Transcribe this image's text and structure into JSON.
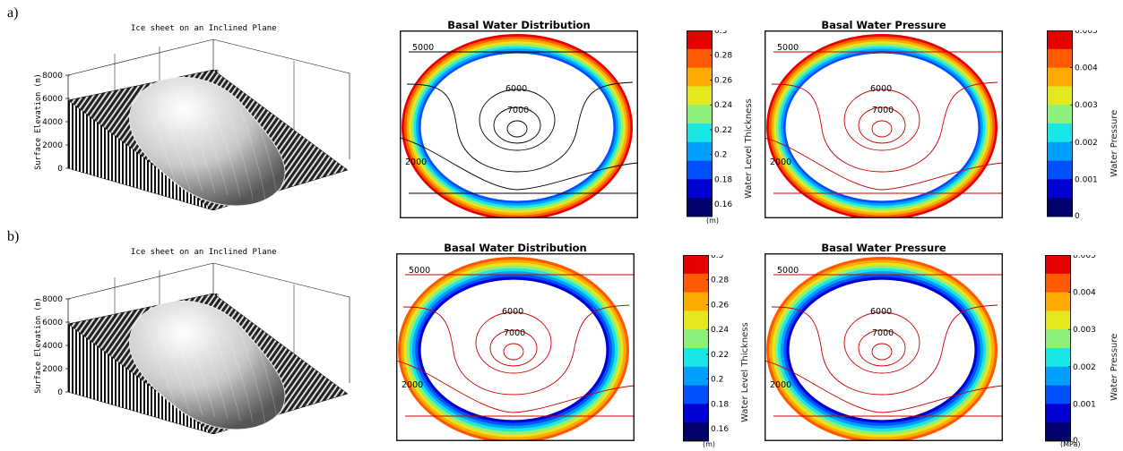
{
  "rows": [
    {
      "label": "a)",
      "surface": {
        "title": "Ice sheet on an Inclined Plane",
        "ylabel": "Surface Elevation (m)",
        "yticks": [
          "8000",
          "6000",
          "4000",
          "2000",
          "0"
        ]
      },
      "water": {
        "title": "Basal Water Distribution",
        "contour_labels": [
          "5000",
          "6000",
          "7000",
          "2000"
        ],
        "contour_color": "#000000",
        "colorbar": {
          "label": "Water Level Thickness",
          "unit": "(m)",
          "ticks": [
            "0.3",
            "0.28",
            "0.26",
            "0.24",
            "0.22",
            "0.2",
            "0.18",
            "0.16"
          ]
        }
      },
      "pressure": {
        "title": "Basal Water Pressure",
        "contour_labels": [
          "5000",
          "6000",
          "7000",
          "2000"
        ],
        "contour_color": "#cc0000",
        "colorbar": {
          "label": "Water Pressure",
          "unit": "",
          "ticks": [
            "0.005",
            "0.004",
            "0.003",
            "0.002",
            "0.001",
            "0"
          ]
        }
      }
    },
    {
      "label": "b)",
      "surface": {
        "title": "Ice sheet on an Inclined Plane",
        "ylabel": "Surface Elevation (m)",
        "yticks": [
          "8000",
          "6000",
          "4000",
          "2000",
          "0"
        ]
      },
      "water": {
        "title": "Basal Water Distribution",
        "contour_labels": [
          "5000",
          "6000",
          "7000",
          "2000"
        ],
        "contour_color": "#cc0000",
        "colorbar": {
          "label": "Water Level Thickness",
          "unit": "(m)",
          "ticks": [
            "0.3",
            "0.28",
            "0.26",
            "0.24",
            "0.22",
            "0.2",
            "0.18",
            "0.16"
          ]
        }
      },
      "pressure": {
        "title": "Basal Water Pressure",
        "contour_labels": [
          "5000",
          "6000",
          "7000",
          "2000"
        ],
        "contour_color": "#cc0000",
        "colorbar": {
          "label": "Water Pressure",
          "unit": "(MPa)",
          "ticks": [
            "0.005",
            "0.004",
            "0.003",
            "0.002",
            "0.001",
            "0"
          ]
        }
      }
    }
  ],
  "colormap": [
    "#e60000",
    "#ff5a00",
    "#ffaa00",
    "#e4e61e",
    "#8cf07a",
    "#19e6e6",
    "#00a0ff",
    "#0050ff",
    "#0000d2",
    "#00006e"
  ],
  "chart_data": [
    {
      "type": "surface",
      "title": "Ice sheet on an Inclined Plane",
      "zlabel": "Surface Elevation (m)",
      "zlim": [
        0,
        8000
      ],
      "zticks": [
        0,
        2000,
        4000,
        6000,
        8000
      ]
    },
    {
      "type": "heatmap",
      "title": "Basal Water Distribution",
      "colorbar_label": "Water Level Thickness",
      "colorbar_unit": "m",
      "colorbar_range": [
        0.15,
        0.3
      ],
      "colorbar_ticks": [
        0.16,
        0.18,
        0.2,
        0.22,
        0.24,
        0.26,
        0.28,
        0.3
      ],
      "contour_levels": [
        2000,
        5000,
        6000,
        7000
      ]
    },
    {
      "type": "heatmap",
      "title": "Basal Water Pressure",
      "colorbar_label": "Water Pressure",
      "colorbar_unit": "MPa",
      "colorbar_range": [
        0,
        0.005
      ],
      "colorbar_ticks": [
        0,
        0.001,
        0.002,
        0.003,
        0.004,
        0.005
      ],
      "contour_levels": [
        2000,
        5000,
        6000,
        7000
      ]
    }
  ]
}
